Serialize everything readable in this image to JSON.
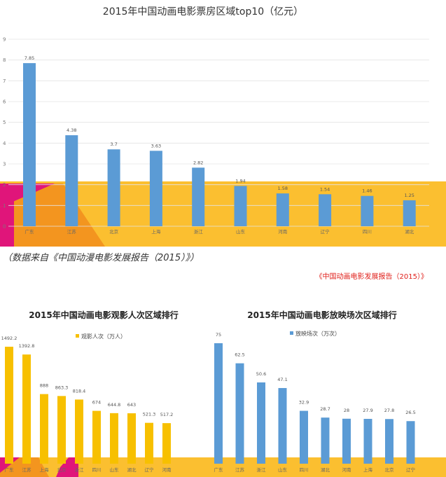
{
  "caption": "（数据来自《中国动漫电影发展报告（2015）》）",
  "source": "《中国动画电影发展报告（2015）》",
  "colors": {
    "blue": "#5b9bd5",
    "gold": "#f7c000",
    "band": "#fbbf30",
    "orange": "#f3951f",
    "magenta": "#e0157a"
  },
  "chart_data": [
    {
      "type": "bar",
      "title": "2015年中国动画电影票房区域top10（亿元）",
      "categories": [
        "广东",
        "江苏",
        "北京",
        "上海",
        "浙江",
        "山东",
        "河南",
        "辽宁",
        "四川",
        "湖北"
      ],
      "values": [
        7.85,
        4.38,
        3.7,
        3.63,
        2.82,
        1.94,
        1.58,
        1.54,
        1.46,
        1.25
      ],
      "value_labels": [
        "7.85",
        "4.38",
        "3.7",
        "3.63",
        "2.82",
        "1.94",
        "1.58",
        "1.54",
        "1.46",
        "1.25"
      ],
      "ylim": [
        0,
        9
      ],
      "y_ticks": [
        "0",
        "1",
        "2",
        "3",
        "4",
        "5",
        "6",
        "7",
        "8",
        "9"
      ],
      "grid": true
    },
    {
      "type": "bar",
      "title": "2015年中国动画电影观影人次区域排行",
      "legend": "观影人次（万人）",
      "legend_position": "top-left",
      "categories": [
        "广东",
        "江苏",
        "上海",
        "北京",
        "浙江",
        "四川",
        "山东",
        "湖北",
        "辽宁",
        "河南"
      ],
      "values": [
        1492.2,
        1392.8,
        888,
        863.3,
        818.4,
        674,
        644.8,
        643,
        521.3,
        517.2
      ],
      "value_labels": [
        "1492.2",
        "1392.8",
        "888",
        "863.3",
        "818.4",
        "674",
        "644.8",
        "643",
        "521.3",
        "517.2"
      ]
    },
    {
      "type": "bar",
      "title": "2015年中国动画电影放映场次区域排行",
      "legend": "放映场次（万次）",
      "legend_position": "top-left",
      "categories": [
        "广东",
        "江苏",
        "浙江",
        "山东",
        "四川",
        "湖北",
        "河南",
        "上海",
        "北京",
        "辽宁"
      ],
      "values": [
        75,
        62.5,
        50.6,
        47.1,
        32.9,
        28.7,
        28,
        27.9,
        27.8,
        26.5
      ],
      "value_labels": [
        "75",
        "62.5",
        "50.6",
        "47.1",
        "32.9",
        "28.7",
        "28",
        "27.9",
        "27.8",
        "26.5"
      ]
    }
  ]
}
